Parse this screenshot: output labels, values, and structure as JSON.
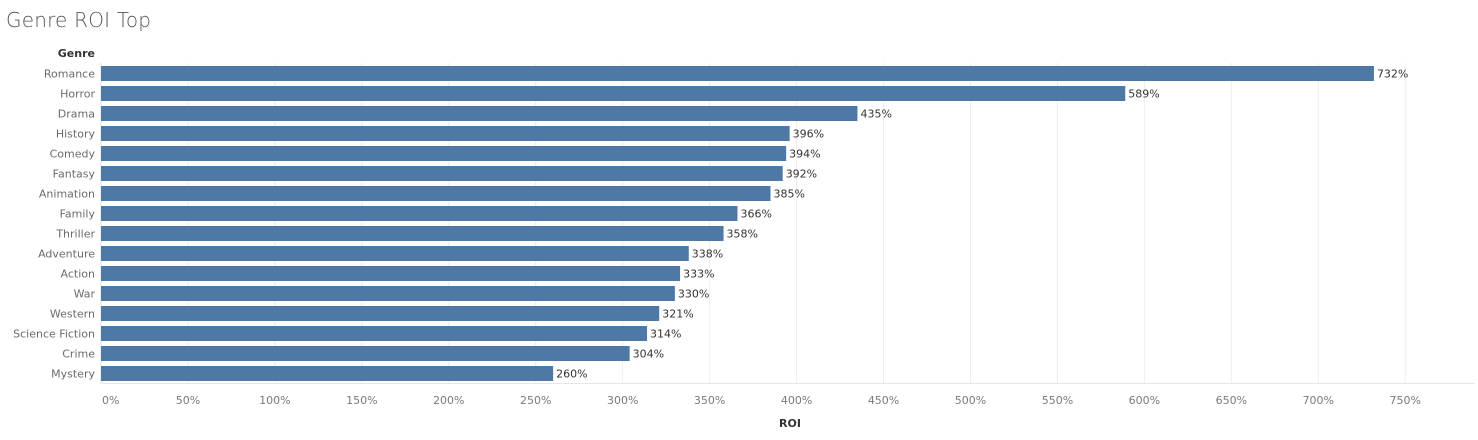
{
  "title": "Genre ROI Top",
  "chart_data": {
    "type": "bar",
    "orientation": "horizontal",
    "title": "Genre ROI Top",
    "ylabel": "Genre",
    "xlabel": "ROI",
    "categories": [
      "Romance",
      "Horror",
      "Drama",
      "History",
      "Comedy",
      "Fantasy",
      "Animation",
      "Family",
      "Thriller",
      "Adventure",
      "Action",
      "War",
      "Western",
      "Science Fiction",
      "Crime",
      "Mystery"
    ],
    "values": [
      732,
      589,
      435,
      396,
      394,
      392,
      385,
      366,
      358,
      338,
      333,
      330,
      321,
      314,
      304,
      260
    ],
    "data_labels": [
      "732%",
      "589%",
      "435%",
      "396%",
      "394%",
      "392%",
      "385%",
      "366%",
      "358%",
      "338%",
      "333%",
      "330%",
      "321%",
      "314%",
      "304%",
      "260%"
    ],
    "xlim": [
      0,
      790
    ],
    "xticks": [
      0,
      50,
      100,
      150,
      200,
      250,
      300,
      350,
      400,
      450,
      500,
      550,
      600,
      650,
      700,
      750
    ],
    "xtick_labels": [
      "0%",
      "50%",
      "100%",
      "150%",
      "200%",
      "250%",
      "300%",
      "350%",
      "400%",
      "450%",
      "500%",
      "550%",
      "600%",
      "650%",
      "700%",
      "750%"
    ],
    "grid": true,
    "legend": "none",
    "bar_color": "#4e79a7"
  }
}
